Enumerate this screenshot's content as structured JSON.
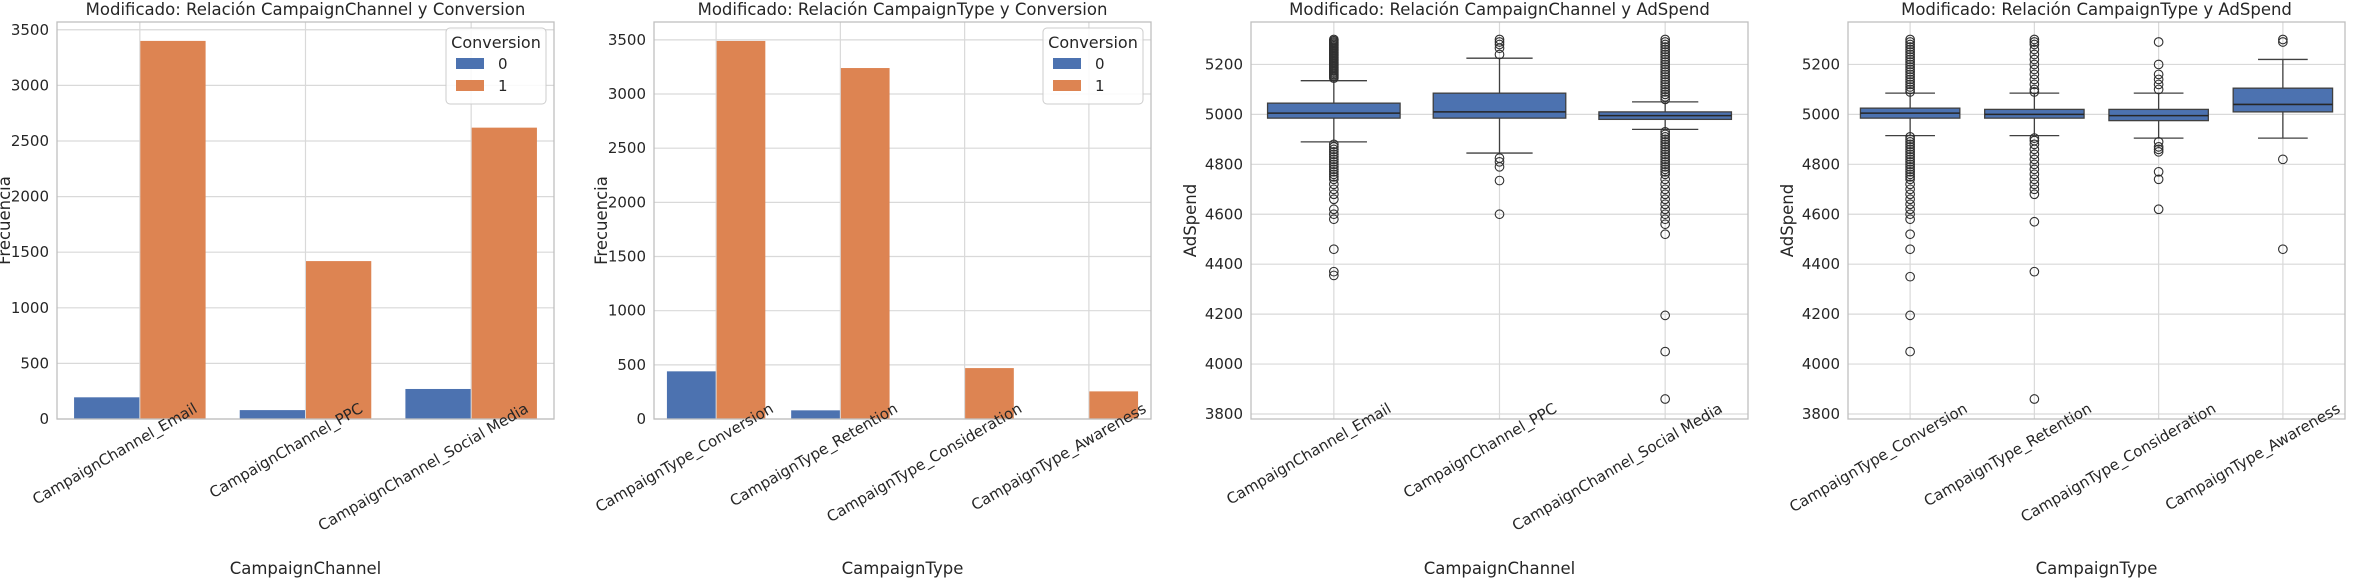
{
  "colors": {
    "series0": "#4c72b0",
    "series1": "#dd8452",
    "grid": "#d9d9d9",
    "frame": "#bfbfbf",
    "text": "#262626",
    "median": "#262626"
  },
  "chart_data": [
    {
      "type": "bar",
      "title": "Modificado: Relación CampaignChannel y Conversion",
      "xlabel": "CampaignChannel",
      "ylabel": "Frecuencia",
      "categories": [
        "CampaignChannel_Email",
        "CampaignChannel_PPC",
        "CampaignChannel_Social Media"
      ],
      "series": [
        {
          "name": "0",
          "values": [
            195,
            80,
            270
          ]
        },
        {
          "name": "1",
          "values": [
            3400,
            1420,
            2620
          ]
        }
      ],
      "ylim": [
        0,
        3570
      ],
      "yticks": [
        0,
        500,
        1000,
        1500,
        2000,
        2500,
        3000,
        3500
      ],
      "legend": {
        "title": "Conversion",
        "position": "top-right"
      },
      "grid": true
    },
    {
      "type": "bar",
      "title": "Modificado: Relación CampaignType y Conversion",
      "xlabel": "CampaignType",
      "ylabel": "Frecuencia",
      "categories": [
        "CampaignType_Conversion",
        "CampaignType_Retention",
        "CampaignType_Consideration",
        "CampaignType_Awareness"
      ],
      "series": [
        {
          "name": "0",
          "values": [
            440,
            80,
            0,
            0
          ]
        },
        {
          "name": "1",
          "values": [
            3490,
            3240,
            470,
            255
          ]
        }
      ],
      "ylim": [
        0,
        3665
      ],
      "yticks": [
        0,
        500,
        1000,
        1500,
        2000,
        2500,
        3000,
        3500
      ],
      "legend": {
        "title": "Conversion",
        "position": "top-right"
      },
      "grid": true
    },
    {
      "type": "box",
      "title": "Modificado: Relación CampaignChannel y AdSpend",
      "xlabel": "CampaignChannel",
      "ylabel": "AdSpend",
      "categories": [
        "CampaignChannel_Email",
        "CampaignChannel_PPC",
        "CampaignChannel_Social Media"
      ],
      "boxes": [
        {
          "q1": 4985,
          "median": 5005,
          "q3": 5045,
          "whisker_low": 4890,
          "whisker_high": 5135,
          "outliers": [
            5300,
            5295,
            5290,
            5285,
            5280,
            5275,
            5270,
            5265,
            5260,
            5255,
            5250,
            5245,
            5240,
            5235,
            5230,
            5225,
            5220,
            5215,
            5210,
            5205,
            5200,
            5195,
            5190,
            5185,
            5180,
            5175,
            5170,
            5165,
            5160,
            5155,
            5150,
            5145,
            4880,
            4870,
            4860,
            4850,
            4840,
            4830,
            4820,
            4810,
            4800,
            4790,
            4780,
            4770,
            4760,
            4750,
            4740,
            4720,
            4700,
            4680,
            4660,
            4620,
            4600,
            4580,
            4460,
            4370,
            4355
          ]
        },
        {
          "q1": 4985,
          "median": 5010,
          "q3": 5085,
          "whisker_low": 4845,
          "whisker_high": 5225,
          "outliers": [
            5300,
            5290,
            5280,
            5265,
            5240,
            4825,
            4810,
            4790,
            4735,
            4600
          ]
        },
        {
          "q1": 4980,
          "median": 4995,
          "q3": 5010,
          "whisker_low": 4940,
          "whisker_high": 5050,
          "outliers": [
            5300,
            5290,
            5280,
            5270,
            5260,
            5250,
            5240,
            5230,
            5220,
            5210,
            5200,
            5190,
            5180,
            5170,
            5160,
            5150,
            5140,
            5130,
            5120,
            5110,
            5100,
            5090,
            5080,
            5070,
            5060,
            4930,
            4920,
            4910,
            4900,
            4890,
            4880,
            4870,
            4860,
            4850,
            4840,
            4830,
            4820,
            4810,
            4800,
            4790,
            4780,
            4770,
            4760,
            4740,
            4720,
            4700,
            4680,
            4660,
            4640,
            4620,
            4600,
            4580,
            4560,
            4520,
            4195,
            4050,
            3860
          ]
        }
      ],
      "ylim": [
        3780,
        5370
      ],
      "yticks": [
        3800,
        4000,
        4200,
        4400,
        4600,
        4800,
        5000,
        5200
      ],
      "grid": true
    },
    {
      "type": "box",
      "title": "Modificado: Relación CampaignType y AdSpend",
      "xlabel": "CampaignType",
      "ylabel": "AdSpend",
      "categories": [
        "CampaignType_Conversion",
        "CampaignType_Retention",
        "CampaignType_Consideration",
        "CampaignType_Awareness"
      ],
      "boxes": [
        {
          "q1": 4985,
          "median": 5005,
          "q3": 5025,
          "whisker_low": 4915,
          "whisker_high": 5085,
          "outliers": [
            5300,
            5290,
            5280,
            5270,
            5260,
            5250,
            5240,
            5230,
            5220,
            5210,
            5200,
            5190,
            5180,
            5170,
            5160,
            5150,
            5140,
            5130,
            5120,
            5110,
            5100,
            5090,
            4910,
            4900,
            4890,
            4880,
            4870,
            4860,
            4850,
            4840,
            4830,
            4820,
            4810,
            4800,
            4790,
            4780,
            4770,
            4760,
            4750,
            4740,
            4720,
            4700,
            4680,
            4660,
            4640,
            4620,
            4600,
            4580,
            4520,
            4460,
            4350,
            4195,
            4050
          ]
        },
        {
          "q1": 4985,
          "median": 5000,
          "q3": 5020,
          "whisker_low": 4915,
          "whisker_high": 5085,
          "outliers": [
            5300,
            5290,
            5280,
            5260,
            5240,
            5220,
            5200,
            5180,
            5160,
            5140,
            5120,
            5100,
            5090,
            4905,
            4895,
            4880,
            4860,
            4840,
            4820,
            4800,
            4780,
            4760,
            4740,
            4720,
            4700,
            4680,
            4570,
            4370,
            3860
          ]
        },
        {
          "q1": 4975,
          "median": 4995,
          "q3": 5020,
          "whisker_low": 4905,
          "whisker_high": 5085,
          "outliers": [
            5290,
            5200,
            5160,
            5140,
            5120,
            5100,
            4890,
            4870,
            4860,
            4850,
            4770,
            4740,
            4620
          ]
        },
        {
          "q1": 5010,
          "median": 5040,
          "q3": 5105,
          "whisker_low": 4905,
          "whisker_high": 5220,
          "outliers": [
            5300,
            5290,
            4820,
            4460
          ]
        }
      ],
      "ylim": [
        3780,
        5370
      ],
      "yticks": [
        3800,
        4000,
        4200,
        4400,
        4600,
        4800,
        5000,
        5200
      ],
      "grid": true
    }
  ]
}
